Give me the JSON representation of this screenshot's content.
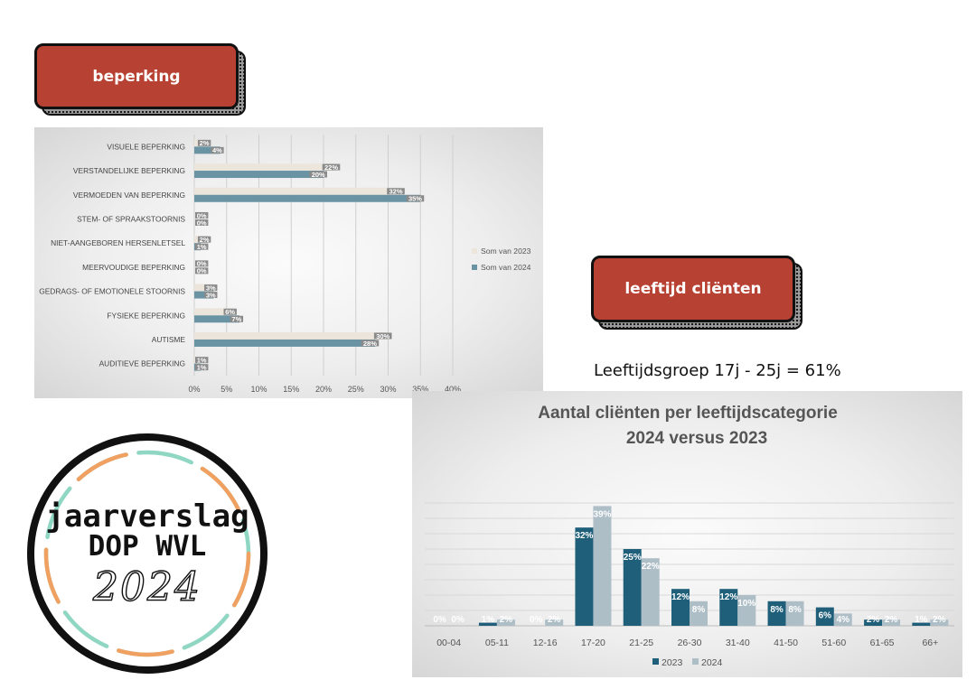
{
  "badges": {
    "beperking": "beperking",
    "leeftijd": "leeftijd cliënten"
  },
  "subtitle": "Leeftijdsgroep 17j - 25j = 61%",
  "logo": {
    "line1": "jaarverslag",
    "line2": "DOP WVL",
    "year": "2024",
    "colors": {
      "ring": "#111111",
      "accent_orange": "#f0a060",
      "accent_teal": "#8fd6c3"
    }
  },
  "chart_data": [
    {
      "type": "bar",
      "orientation": "horizontal",
      "title": "",
      "categories": [
        "VISUELE BEPERKING",
        "VERSTANDELIJKE BEPERKING",
        "VERMOEDEN VAN BEPERKING",
        "STEM- OF SPRAAKSTOORNIS",
        "NIET-AANGEBOREN HERSENLETSEL",
        "MEERVOUDIGE BEPERKING",
        "GEDRAGS- OF EMOTIONELE STOORNIS",
        "FYSIEKE BEPERKING",
        "AUTISME",
        "AUDITIEVE BEPERKING"
      ],
      "series": [
        {
          "name": "Som van 2023",
          "color": "#ece5dc",
          "values": [
            2,
            22,
            32,
            0,
            2,
            0,
            3,
            6,
            30,
            1
          ],
          "labels": [
            "2%",
            "22%",
            "32%",
            "0%",
            "2%",
            "0%",
            "3%",
            "6%",
            "30%",
            "1%"
          ]
        },
        {
          "name": "Som van 2024",
          "color": "#6a93a4",
          "values": [
            4,
            20,
            35,
            0,
            1,
            0,
            3,
            7,
            28,
            1
          ],
          "labels": [
            "4%",
            "20%",
            "35%",
            "0%",
            "1%",
            "0%",
            "3%",
            "7%",
            "28%",
            "1%"
          ]
        }
      ],
      "xlim": [
        0,
        40
      ],
      "ticks": [
        "0%",
        "5%",
        "10%",
        "15%",
        "20%",
        "25%",
        "30%",
        "35%",
        "40%"
      ],
      "grid": true,
      "legend": "right"
    },
    {
      "type": "bar",
      "orientation": "vertical",
      "title": "Aantal cliënten per leeftijdscategorie",
      "subtitle": "2024 versus 2023",
      "categories": [
        "00-04",
        "05-11",
        "12-16",
        "17-20",
        "21-25",
        "26-30",
        "31-40",
        "41-50",
        "51-60",
        "61-65",
        "66+"
      ],
      "series": [
        {
          "name": "2023",
          "color": "#1f5f7a",
          "values": [
            0,
            1,
            0,
            32,
            25,
            12,
            12,
            8,
            6,
            2,
            1
          ],
          "labels": [
            "0%",
            "1%",
            "0%",
            "32%",
            "25%",
            "12%",
            "12%",
            "8%",
            "6%",
            "2%",
            "1%"
          ]
        },
        {
          "name": "2024",
          "color": "#aebec7",
          "values": [
            0,
            2,
            2,
            39,
            22,
            8,
            10,
            8,
            4,
            2,
            2
          ],
          "labels": [
            "0%",
            "2%",
            "2%",
            "39%",
            "22%",
            "8%",
            "10%",
            "8%",
            "4%",
            "2%",
            "2%"
          ]
        }
      ],
      "ylim": [
        0,
        40
      ],
      "grid": true,
      "legend": "bottom"
    }
  ]
}
